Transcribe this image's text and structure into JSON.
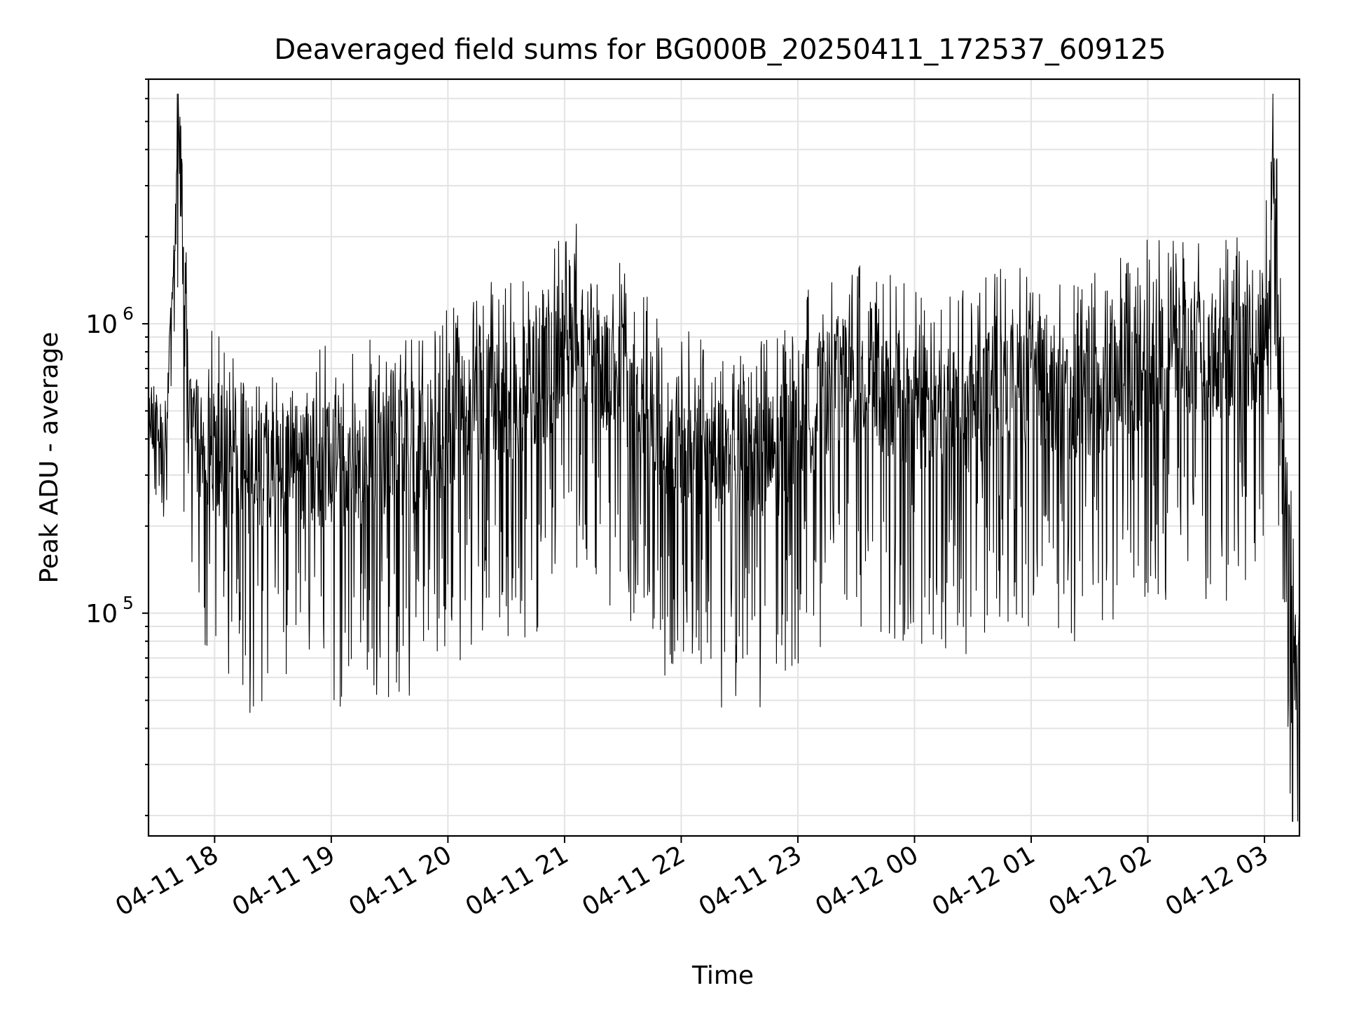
{
  "chart_data": {
    "type": "line",
    "title": "Deaveraged field sums for BG000B_20250411_172537_609125",
    "xlabel": "Time",
    "ylabel": "Peak ADU - average",
    "y_scale": "log",
    "ylim": [
      17000,
      7000000
    ],
    "xlim": [
      "2025-04-11 17:26",
      "2025-04-12 03:18"
    ],
    "x_tick_labels": [
      "04-11 18",
      "04-11 19",
      "04-11 20",
      "04-11 21",
      "04-11 22",
      "04-11 23",
      "04-12 00",
      "04-12 01",
      "04-12 02",
      "04-12 03"
    ],
    "y_tick_labels": [
      {
        "base": "10",
        "exp": "5"
      },
      {
        "base": "10",
        "exp": "6"
      }
    ],
    "grid": "on",
    "line_color": "#000000",
    "series": [
      {
        "x": [
          "2025-04-11 17:26",
          "2025-04-11 17:35",
          "2025-04-11 17:42",
          "2025-04-11 17:46",
          "2025-04-11 17:52",
          "2025-04-11 18:05",
          "2025-04-11 18:20",
          "2025-04-11 18:35",
          "2025-04-11 18:50",
          "2025-04-11 19:05",
          "2025-04-11 19:20",
          "2025-04-11 19:35",
          "2025-04-11 19:50",
          "2025-04-11 20:05",
          "2025-04-11 20:20",
          "2025-04-11 20:35",
          "2025-04-11 20:50",
          "2025-04-11 21:05",
          "2025-04-11 21:20",
          "2025-04-11 21:35",
          "2025-04-11 21:50",
          "2025-04-11 22:05",
          "2025-04-11 22:20",
          "2025-04-11 22:35",
          "2025-04-11 22:50",
          "2025-04-11 23:05",
          "2025-04-11 23:20",
          "2025-04-11 23:35",
          "2025-04-11 23:50",
          "2025-04-12 00:05",
          "2025-04-12 00:20",
          "2025-04-12 00:35",
          "2025-04-12 00:50",
          "2025-04-12 01:05",
          "2025-04-12 01:20",
          "2025-04-12 01:35",
          "2025-04-12 01:50",
          "2025-04-12 02:05",
          "2025-04-12 02:20",
          "2025-04-12 02:35",
          "2025-04-12 02:50",
          "2025-04-12 03:00",
          "2025-04-12 03:05",
          "2025-04-12 03:10",
          "2025-04-12 03:15",
          "2025-04-12 03:18"
        ],
        "y": [
          450000,
          420000,
          4600000,
          480000,
          420000,
          330000,
          300000,
          310000,
          330000,
          320000,
          350000,
          360000,
          380000,
          480000,
          530000,
          560000,
          620000,
          900000,
          720000,
          600000,
          430000,
          370000,
          330000,
          320000,
          360000,
          500000,
          580000,
          640000,
          560000,
          510000,
          470000,
          560000,
          650000,
          620000,
          560000,
          590000,
          680000,
          780000,
          800000,
          760000,
          820000,
          800000,
          3100000,
          400000,
          70000,
          45000
        ]
      }
    ]
  }
}
